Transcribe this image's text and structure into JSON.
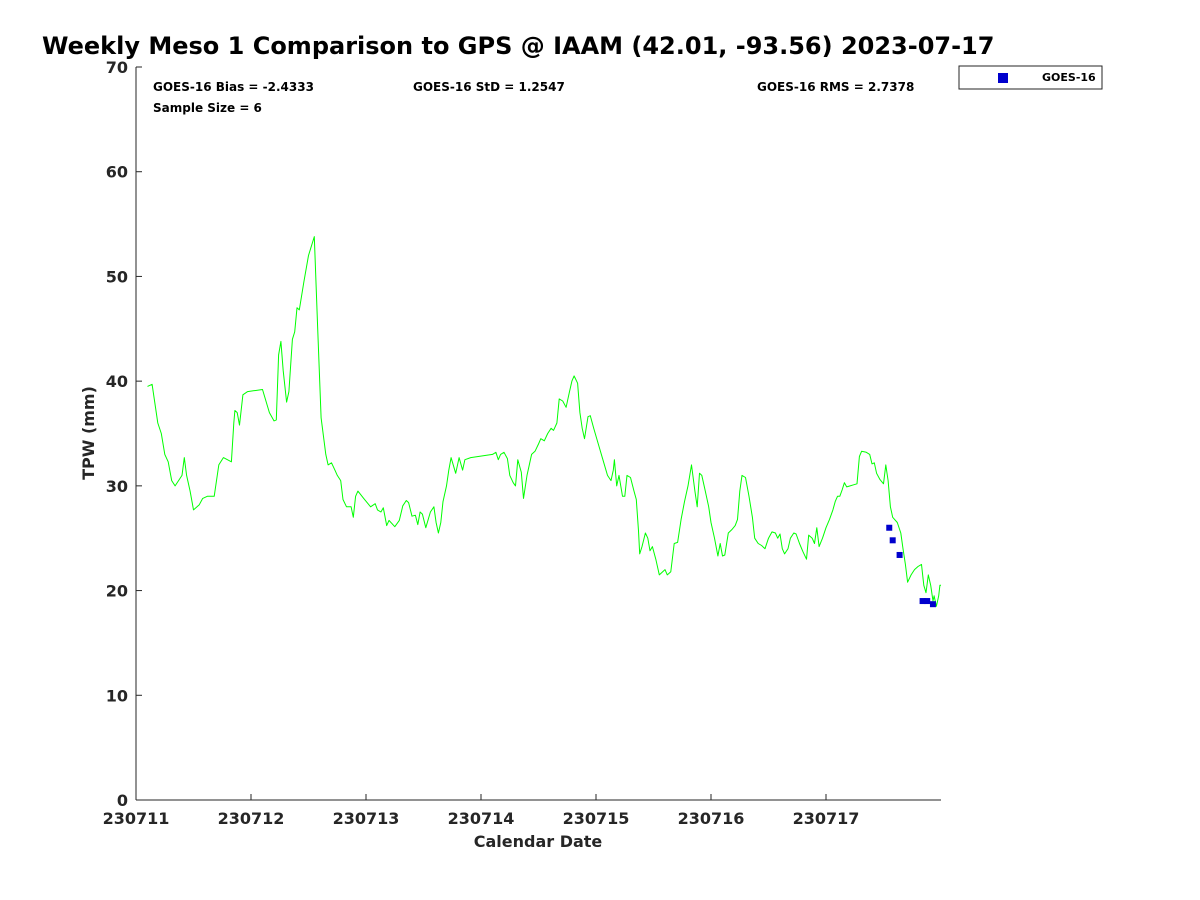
{
  "chart_data": {
    "type": "scatter",
    "title": "Weekly Meso 1 Comparison to GPS @ IAAM (42.01, -93.56) 2023-07-17",
    "xlabel": "Calendar Date",
    "ylabel": "TPW (mm)",
    "xlim": [
      0,
      7
    ],
    "ylim": [
      0,
      70
    ],
    "x_ticks": [
      {
        "value": 0,
        "label": "230711"
      },
      {
        "value": 1,
        "label": "230712"
      },
      {
        "value": 2,
        "label": "230713"
      },
      {
        "value": 3,
        "label": "230714"
      },
      {
        "value": 4,
        "label": "230715"
      },
      {
        "value": 5,
        "label": "230716"
      },
      {
        "value": 6,
        "label": "230717"
      }
    ],
    "y_ticks": [
      0,
      10,
      20,
      30,
      40,
      50,
      60,
      70
    ],
    "grid": false,
    "legend": {
      "position": "top-right",
      "entries": [
        "GOES-16"
      ]
    },
    "stats": {
      "bias": "GOES-16 Bias = -2.4333",
      "std": "GOES-16 StD = 1.2547",
      "rms": "GOES-16 RMS = 2.7378",
      "sample": "Sample Size = 6"
    },
    "series": [
      {
        "kind": "line",
        "color": "#00ff00",
        "points": [
          [
            0.1,
            39.5
          ],
          [
            0.14,
            39.7
          ],
          [
            0.19,
            36.0
          ],
          [
            0.22,
            35.0
          ],
          [
            0.25,
            33.0
          ],
          [
            0.28,
            32.3
          ],
          [
            0.31,
            30.5
          ],
          [
            0.34,
            30.0
          ],
          [
            0.4,
            31.0
          ],
          [
            0.42,
            32.7
          ],
          [
            0.44,
            31.0
          ],
          [
            0.47,
            29.5
          ],
          [
            0.5,
            27.7
          ],
          [
            0.55,
            28.2
          ],
          [
            0.58,
            28.8
          ],
          [
            0.62,
            29.0
          ],
          [
            0.68,
            29.0
          ],
          [
            0.72,
            32.0
          ],
          [
            0.76,
            32.7
          ],
          [
            0.83,
            32.3
          ],
          [
            0.85,
            36.0
          ],
          [
            0.86,
            37.2
          ],
          [
            0.88,
            37.0
          ],
          [
            0.9,
            35.8
          ],
          [
            0.93,
            38.7
          ],
          [
            0.97,
            39.0
          ],
          [
            1.1,
            39.2
          ],
          [
            1.16,
            37.0
          ],
          [
            1.2,
            36.2
          ],
          [
            1.22,
            36.3
          ],
          [
            1.24,
            42.5
          ],
          [
            1.26,
            43.8
          ],
          [
            1.28,
            41.0
          ],
          [
            1.31,
            38.0
          ],
          [
            1.33,
            39.0
          ],
          [
            1.36,
            44.0
          ],
          [
            1.38,
            44.7
          ],
          [
            1.4,
            47.0
          ],
          [
            1.42,
            46.8
          ],
          [
            1.46,
            49.5
          ],
          [
            1.5,
            52.0
          ],
          [
            1.55,
            53.8
          ],
          [
            1.58,
            45.0
          ],
          [
            1.61,
            36.5
          ],
          [
            1.65,
            33.0
          ],
          [
            1.67,
            32.0
          ],
          [
            1.7,
            32.2
          ],
          [
            1.73,
            31.5
          ],
          [
            1.75,
            31.0
          ],
          [
            1.78,
            30.5
          ],
          [
            1.8,
            28.7
          ],
          [
            1.83,
            28.0
          ],
          [
            1.87,
            28.0
          ],
          [
            1.89,
            27.0
          ],
          [
            1.91,
            29.0
          ],
          [
            1.93,
            29.5
          ],
          [
            1.98,
            28.8
          ],
          [
            2.04,
            28.0
          ],
          [
            2.08,
            28.3
          ],
          [
            2.1,
            27.7
          ],
          [
            2.13,
            27.5
          ],
          [
            2.15,
            27.9
          ],
          [
            2.18,
            26.2
          ],
          [
            2.2,
            26.7
          ],
          [
            2.25,
            26.1
          ],
          [
            2.29,
            26.7
          ],
          [
            2.32,
            28.1
          ],
          [
            2.35,
            28.6
          ],
          [
            2.37,
            28.4
          ],
          [
            2.4,
            27.1
          ],
          [
            2.43,
            27.2
          ],
          [
            2.45,
            26.3
          ],
          [
            2.47,
            27.5
          ],
          [
            2.49,
            27.3
          ],
          [
            2.52,
            26.0
          ],
          [
            2.56,
            27.5
          ],
          [
            2.59,
            28.0
          ],
          [
            2.61,
            26.5
          ],
          [
            2.63,
            25.5
          ],
          [
            2.65,
            26.5
          ],
          [
            2.67,
            28.5
          ],
          [
            2.7,
            30.0
          ],
          [
            2.72,
            31.5
          ],
          [
            2.74,
            32.7
          ],
          [
            2.78,
            31.2
          ],
          [
            2.81,
            32.7
          ],
          [
            2.84,
            31.5
          ],
          [
            2.86,
            32.5
          ],
          [
            2.91,
            32.7
          ],
          [
            3.1,
            33.0
          ],
          [
            3.13,
            33.2
          ],
          [
            3.15,
            32.5
          ],
          [
            3.17,
            33.0
          ],
          [
            3.2,
            33.2
          ],
          [
            3.23,
            32.6
          ],
          [
            3.25,
            31.0
          ],
          [
            3.28,
            30.3
          ],
          [
            3.3,
            30.0
          ],
          [
            3.32,
            32.5
          ],
          [
            3.35,
            31.3
          ],
          [
            3.37,
            28.8
          ],
          [
            3.4,
            31.0
          ],
          [
            3.42,
            32.0
          ],
          [
            3.44,
            33.0
          ],
          [
            3.47,
            33.3
          ],
          [
            3.5,
            34.0
          ],
          [
            3.52,
            34.5
          ],
          [
            3.55,
            34.3
          ],
          [
            3.58,
            35.0
          ],
          [
            3.61,
            35.5
          ],
          [
            3.63,
            35.3
          ],
          [
            3.66,
            36.0
          ],
          [
            3.68,
            38.3
          ],
          [
            3.71,
            38.1
          ],
          [
            3.74,
            37.5
          ],
          [
            3.77,
            39.0
          ],
          [
            3.79,
            40.0
          ],
          [
            3.81,
            40.5
          ],
          [
            3.84,
            39.8
          ],
          [
            3.86,
            37.0
          ],
          [
            3.88,
            35.5
          ],
          [
            3.9,
            34.5
          ],
          [
            3.93,
            36.6
          ],
          [
            3.95,
            36.7
          ],
          [
            3.98,
            35.5
          ],
          [
            4.02,
            34.0
          ],
          [
            4.06,
            32.5
          ],
          [
            4.1,
            31.0
          ],
          [
            4.13,
            30.5
          ],
          [
            4.15,
            31.5
          ],
          [
            4.16,
            32.5
          ],
          [
            4.18,
            30.0
          ],
          [
            4.2,
            31.0
          ],
          [
            4.23,
            29.0
          ],
          [
            4.25,
            29.0
          ],
          [
            4.27,
            31.0
          ],
          [
            4.3,
            30.8
          ],
          [
            4.33,
            29.5
          ],
          [
            4.35,
            28.7
          ],
          [
            4.37,
            25.7
          ],
          [
            4.38,
            23.5
          ],
          [
            4.4,
            24.2
          ],
          [
            4.43,
            25.5
          ],
          [
            4.45,
            25.0
          ],
          [
            4.47,
            23.8
          ],
          [
            4.49,
            24.2
          ],
          [
            4.52,
            23.0
          ],
          [
            4.55,
            21.5
          ],
          [
            4.58,
            21.8
          ],
          [
            4.6,
            22.0
          ],
          [
            4.62,
            21.5
          ],
          [
            4.65,
            21.8
          ],
          [
            4.68,
            24.5
          ],
          [
            4.71,
            24.6
          ],
          [
            4.74,
            26.8
          ],
          [
            4.77,
            28.5
          ],
          [
            4.8,
            30.0
          ],
          [
            4.83,
            32.0
          ],
          [
            4.86,
            29.5
          ],
          [
            4.88,
            28.0
          ],
          [
            4.9,
            31.2
          ],
          [
            4.92,
            31.0
          ],
          [
            4.95,
            29.5
          ],
          [
            4.98,
            28.0
          ],
          [
            5.0,
            26.5
          ],
          [
            5.03,
            25.0
          ],
          [
            5.06,
            23.3
          ],
          [
            5.08,
            24.5
          ],
          [
            5.1,
            23.3
          ],
          [
            5.12,
            23.4
          ],
          [
            5.15,
            25.5
          ],
          [
            5.18,
            25.8
          ],
          [
            5.21,
            26.2
          ],
          [
            5.23,
            26.8
          ],
          [
            5.25,
            29.5
          ],
          [
            5.27,
            31.0
          ],
          [
            5.3,
            30.8
          ],
          [
            5.33,
            29.0
          ],
          [
            5.36,
            27.0
          ],
          [
            5.38,
            25.0
          ],
          [
            5.41,
            24.5
          ],
          [
            5.44,
            24.3
          ],
          [
            5.47,
            24.0
          ],
          [
            5.5,
            25.0
          ],
          [
            5.53,
            25.6
          ],
          [
            5.56,
            25.5
          ],
          [
            5.58,
            25.0
          ],
          [
            5.6,
            25.4
          ],
          [
            5.62,
            24.0
          ],
          [
            5.64,
            23.5
          ],
          [
            5.67,
            24.0
          ],
          [
            5.69,
            25.0
          ],
          [
            5.72,
            25.5
          ],
          [
            5.74,
            25.4
          ],
          [
            5.77,
            24.5
          ],
          [
            5.8,
            23.7
          ],
          [
            5.83,
            23.0
          ],
          [
            5.85,
            25.3
          ],
          [
            5.88,
            25.0
          ],
          [
            5.9,
            24.5
          ],
          [
            5.92,
            26.0
          ],
          [
            5.94,
            24.2
          ],
          [
            5.97,
            25.0
          ],
          [
            6.0,
            26.0
          ],
          [
            6.03,
            26.8
          ],
          [
            6.06,
            27.7
          ],
          [
            6.08,
            28.5
          ],
          [
            6.1,
            29.0
          ],
          [
            6.12,
            29.0
          ],
          [
            6.14,
            29.6
          ],
          [
            6.16,
            30.3
          ],
          [
            6.18,
            29.9
          ],
          [
            6.21,
            30.0
          ],
          [
            6.24,
            30.1
          ],
          [
            6.27,
            30.2
          ],
          [
            6.29,
            32.8
          ],
          [
            6.31,
            33.3
          ],
          [
            6.35,
            33.2
          ],
          [
            6.38,
            33.0
          ],
          [
            6.4,
            32.1
          ],
          [
            6.42,
            32.2
          ],
          [
            6.44,
            31.2
          ],
          [
            6.47,
            30.6
          ],
          [
            6.5,
            30.2
          ],
          [
            6.52,
            32.0
          ],
          [
            6.54,
            30.5
          ],
          [
            6.56,
            28.0
          ],
          [
            6.58,
            27.0
          ],
          [
            6.62,
            26.5
          ],
          [
            6.65,
            25.5
          ],
          [
            6.67,
            24.0
          ],
          [
            6.69,
            22.5
          ],
          [
            6.71,
            20.8
          ],
          [
            6.74,
            21.5
          ],
          [
            6.77,
            22.0
          ],
          [
            6.8,
            22.3
          ],
          [
            6.83,
            22.5
          ],
          [
            6.85,
            20.5
          ],
          [
            6.87,
            19.8
          ],
          [
            6.89,
            21.5
          ],
          [
            6.91,
            20.5
          ],
          [
            6.93,
            19.0
          ],
          [
            6.94,
            19.5
          ],
          [
            6.96,
            18.5
          ],
          [
            6.98,
            19.5
          ],
          [
            6.99,
            20.5
          ],
          [
            7.0,
            20.5
          ]
        ]
      },
      {
        "kind": "markers",
        "name": "GOES-16",
        "color": "#0000cd",
        "points": [
          [
            6.55,
            26.0
          ],
          [
            6.58,
            24.8
          ],
          [
            6.64,
            23.4
          ],
          [
            6.84,
            19.0
          ],
          [
            6.88,
            19.0
          ],
          [
            6.93,
            18.7
          ]
        ]
      }
    ]
  }
}
